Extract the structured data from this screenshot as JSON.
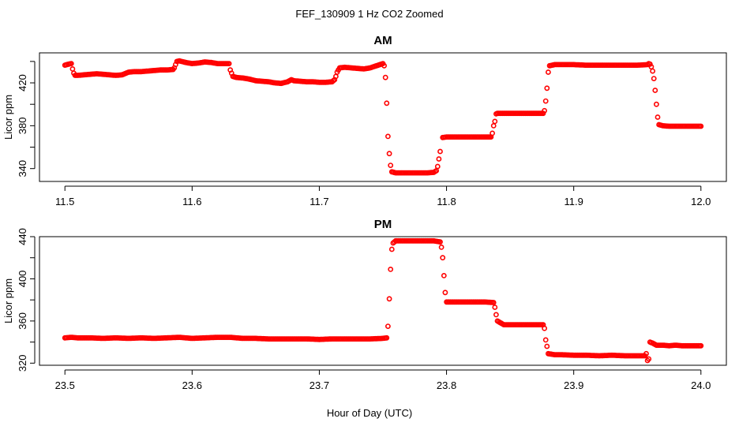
{
  "figure": {
    "title": "FEF_130909  1 Hz CO2 Zoomed",
    "xlabel": "Hour of Day (UTC)",
    "point_color": "#ff0000"
  },
  "chart_data": [
    {
      "type": "scatter",
      "title": "AM",
      "ylabel": "Licor ppm",
      "xlim": [
        11.48,
        12.02
      ],
      "ylim": [
        328,
        448
      ],
      "xticks": [
        11.5,
        11.6,
        11.7,
        11.8,
        11.9,
        12.0
      ],
      "xtick_labels": [
        "11.5",
        "11.6",
        "11.7",
        "11.8",
        "11.9",
        "12.0"
      ],
      "yticks": [
        340,
        360,
        380,
        400,
        420,
        440
      ],
      "ytick_labels": [
        "340",
        "",
        "380",
        "",
        "420",
        ""
      ],
      "points": [
        [
          11.5,
          436.5
        ],
        [
          11.503,
          437.5
        ],
        [
          11.505,
          438
        ],
        [
          11.506,
          433
        ],
        [
          11.507,
          429
        ],
        [
          11.508,
          427
        ],
        [
          11.51,
          427
        ],
        [
          11.515,
          427.5
        ],
        [
          11.52,
          428
        ],
        [
          11.525,
          428.5
        ],
        [
          11.53,
          428
        ],
        [
          11.535,
          427.5
        ],
        [
          11.54,
          427
        ],
        [
          11.545,
          427.5
        ],
        [
          11.548,
          429
        ],
        [
          11.55,
          430
        ],
        [
          11.555,
          430.5
        ],
        [
          11.56,
          430.5
        ],
        [
          11.565,
          431
        ],
        [
          11.57,
          431.5
        ],
        [
          11.575,
          432
        ],
        [
          11.58,
          432
        ],
        [
          11.585,
          432.5
        ],
        [
          11.586,
          434
        ],
        [
          11.587,
          437
        ],
        [
          11.588,
          440
        ],
        [
          11.59,
          440.5
        ],
        [
          11.595,
          439
        ],
        [
          11.6,
          438
        ],
        [
          11.605,
          438.5
        ],
        [
          11.61,
          439.5
        ],
        [
          11.615,
          439
        ],
        [
          11.62,
          438
        ],
        [
          11.625,
          438
        ],
        [
          11.629,
          438
        ],
        [
          11.63,
          432
        ],
        [
          11.631,
          429
        ],
        [
          11.632,
          426
        ],
        [
          11.635,
          425
        ],
        [
          11.64,
          424.5
        ],
        [
          11.645,
          423.5
        ],
        [
          11.65,
          422
        ],
        [
          11.655,
          421.5
        ],
        [
          11.66,
          421
        ],
        [
          11.665,
          420
        ],
        [
          11.67,
          419.5
        ],
        [
          11.675,
          421
        ],
        [
          11.678,
          423
        ],
        [
          11.68,
          422
        ],
        [
          11.685,
          421.5
        ],
        [
          11.69,
          421
        ],
        [
          11.695,
          421
        ],
        [
          11.7,
          420.5
        ],
        [
          11.705,
          420.5
        ],
        [
          11.71,
          421
        ],
        [
          11.712,
          423
        ],
        [
          11.713,
          426
        ],
        [
          11.714,
          430
        ],
        [
          11.716,
          434
        ],
        [
          11.72,
          434.5
        ],
        [
          11.725,
          434
        ],
        [
          11.73,
          433.5
        ],
        [
          11.735,
          433
        ],
        [
          11.74,
          434
        ],
        [
          11.745,
          436
        ],
        [
          11.75,
          438
        ],
        [
          11.751,
          436
        ],
        [
          11.752,
          425
        ],
        [
          11.753,
          401
        ],
        [
          11.754,
          370
        ],
        [
          11.755,
          354
        ],
        [
          11.756,
          343
        ],
        [
          11.757,
          337
        ],
        [
          11.76,
          336
        ],
        [
          11.765,
          336
        ],
        [
          11.77,
          336
        ],
        [
          11.775,
          336
        ],
        [
          11.78,
          336
        ],
        [
          11.785,
          336
        ],
        [
          11.79,
          336.5
        ],
        [
          11.792,
          338
        ],
        [
          11.793,
          342
        ],
        [
          11.794,
          349
        ],
        [
          11.795,
          356
        ],
        [
          11.797,
          369
        ],
        [
          11.8,
          369.5
        ],
        [
          11.81,
          369.5
        ],
        [
          11.82,
          369.5
        ],
        [
          11.83,
          369.5
        ],
        [
          11.835,
          369.5
        ],
        [
          11.836,
          373
        ],
        [
          11.837,
          380
        ],
        [
          11.838,
          384
        ],
        [
          11.839,
          391
        ],
        [
          11.84,
          391.5
        ],
        [
          11.85,
          391.5
        ],
        [
          11.86,
          391.5
        ],
        [
          11.87,
          391.5
        ],
        [
          11.876,
          391.5
        ],
        [
          11.877,
          394
        ],
        [
          11.878,
          403
        ],
        [
          11.879,
          415
        ],
        [
          11.88,
          430
        ],
        [
          11.881,
          436
        ],
        [
          11.885,
          437
        ],
        [
          11.89,
          437
        ],
        [
          11.9,
          437
        ],
        [
          11.91,
          436.5
        ],
        [
          11.92,
          436.5
        ],
        [
          11.93,
          436.5
        ],
        [
          11.94,
          436.5
        ],
        [
          11.95,
          436.5
        ],
        [
          11.958,
          437
        ],
        [
          11.959,
          438
        ],
        [
          11.96,
          437.5
        ],
        [
          11.961,
          435
        ],
        [
          11.962,
          431
        ],
        [
          11.963,
          424
        ],
        [
          11.964,
          413
        ],
        [
          11.965,
          400
        ],
        [
          11.966,
          388
        ],
        [
          11.967,
          381
        ],
        [
          11.97,
          380
        ],
        [
          11.975,
          379.5
        ],
        [
          11.98,
          379.5
        ],
        [
          11.985,
          379.5
        ],
        [
          11.99,
          379.5
        ],
        [
          11.995,
          379.5
        ],
        [
          12.0,
          379.5
        ]
      ]
    },
    {
      "type": "scatter",
      "title": "PM",
      "ylabel": "Licor ppm",
      "xlim": [
        23.48,
        24.02
      ],
      "ylim": [
        318,
        440
      ],
      "xticks": [
        23.5,
        23.6,
        23.7,
        23.8,
        23.9,
        24.0
      ],
      "xtick_labels": [
        "23.5",
        "23.6",
        "23.7",
        "23.8",
        "23.9",
        "24.0"
      ],
      "yticks": [
        320,
        340,
        360,
        380,
        400,
        420,
        440
      ],
      "ytick_labels": [
        "320",
        "",
        "360",
        "",
        "400",
        "",
        "440"
      ],
      "points": [
        [
          23.5,
          344
        ],
        [
          23.505,
          344.5
        ],
        [
          23.51,
          344
        ],
        [
          23.52,
          344
        ],
        [
          23.53,
          343.5
        ],
        [
          23.54,
          344
        ],
        [
          23.55,
          343.5
        ],
        [
          23.56,
          344
        ],
        [
          23.57,
          343.5
        ],
        [
          23.58,
          344
        ],
        [
          23.59,
          344.5
        ],
        [
          23.6,
          343.5
        ],
        [
          23.61,
          344
        ],
        [
          23.62,
          344.5
        ],
        [
          23.63,
          344.5
        ],
        [
          23.64,
          343.5
        ],
        [
          23.65,
          343.5
        ],
        [
          23.66,
          343
        ],
        [
          23.67,
          343
        ],
        [
          23.68,
          343
        ],
        [
          23.69,
          343
        ],
        [
          23.7,
          342.5
        ],
        [
          23.71,
          343
        ],
        [
          23.72,
          343
        ],
        [
          23.73,
          343
        ],
        [
          23.74,
          343
        ],
        [
          23.75,
          343.5
        ],
        [
          23.753,
          344
        ],
        [
          23.754,
          355
        ],
        [
          23.755,
          381
        ],
        [
          23.756,
          409
        ],
        [
          23.757,
          428
        ],
        [
          23.758,
          434
        ],
        [
          23.76,
          436
        ],
        [
          23.77,
          436
        ],
        [
          23.78,
          436
        ],
        [
          23.79,
          436
        ],
        [
          23.795,
          435
        ],
        [
          23.796,
          430
        ],
        [
          23.797,
          420
        ],
        [
          23.798,
          403
        ],
        [
          23.799,
          387
        ],
        [
          23.8,
          378
        ],
        [
          23.81,
          378
        ],
        [
          23.82,
          378
        ],
        [
          23.83,
          378
        ],
        [
          23.837,
          377.5
        ],
        [
          23.838,
          373
        ],
        [
          23.839,
          366
        ],
        [
          23.84,
          360
        ],
        [
          23.845,
          356.5
        ],
        [
          23.85,
          356.5
        ],
        [
          23.86,
          356.5
        ],
        [
          23.87,
          356.5
        ],
        [
          23.876,
          356.5
        ],
        [
          23.877,
          353
        ],
        [
          23.878,
          342
        ],
        [
          23.879,
          336
        ],
        [
          23.88,
          329
        ],
        [
          23.885,
          328
        ],
        [
          23.89,
          328
        ],
        [
          23.9,
          327.5
        ],
        [
          23.91,
          327.5
        ],
        [
          23.92,
          327
        ],
        [
          23.93,
          327.5
        ],
        [
          23.94,
          327
        ],
        [
          23.95,
          327
        ],
        [
          23.956,
          327
        ],
        [
          23.957,
          329
        ],
        [
          23.958,
          322.5
        ],
        [
          23.959,
          324
        ],
        [
          23.96,
          340
        ],
        [
          23.962,
          339
        ],
        [
          23.965,
          337
        ],
        [
          23.97,
          337
        ],
        [
          23.975,
          336.5
        ],
        [
          23.98,
          337
        ],
        [
          23.985,
          336.5
        ],
        [
          23.99,
          336.5
        ],
        [
          23.995,
          336.5
        ],
        [
          24.0,
          336.5
        ]
      ]
    }
  ]
}
